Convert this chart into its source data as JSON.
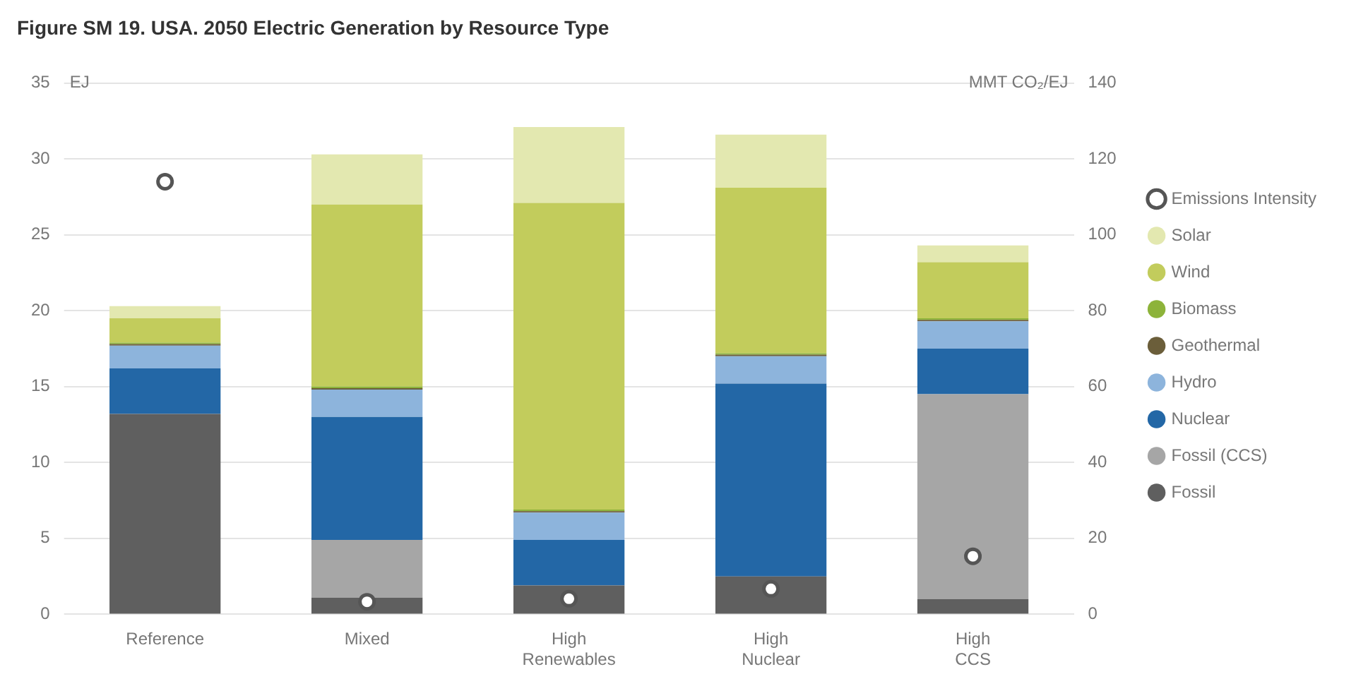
{
  "chart_data": {
    "type": "bar",
    "title": "Figure SM 19. USA. 2050 Electric Generation by Resource Type",
    "ylabel": "EJ",
    "y2label": "MMT CO₂/EJ",
    "categories": [
      "Reference",
      "Mixed",
      "High Renewables",
      "High Nuclear",
      "High CCS"
    ],
    "stacked": true,
    "series": [
      {
        "name": "Fossil",
        "color": "#5f5f5f",
        "values": [
          13.2,
          1.1,
          1.9,
          2.5,
          1.0
        ]
      },
      {
        "name": "Fossil (CCS)",
        "color": "#a6a6a6",
        "values": [
          0,
          3.8,
          0,
          0,
          13.5
        ]
      },
      {
        "name": "Nuclear",
        "color": "#2367a6",
        "values": [
          3.0,
          8.1,
          3.0,
          12.7,
          3.0
        ]
      },
      {
        "name": "Hydro",
        "color": "#8db4dc",
        "values": [
          1.5,
          1.8,
          1.8,
          1.8,
          1.8
        ]
      },
      {
        "name": "Geothermal",
        "color": "#6b5e3a",
        "values": [
          0.1,
          0.1,
          0.1,
          0.1,
          0.1
        ]
      },
      {
        "name": "Biomass",
        "color": "#8db33a",
        "values": [
          0.1,
          0.1,
          0.1,
          0.1,
          0.1
        ]
      },
      {
        "name": "Wind",
        "color": "#c2cc5c",
        "values": [
          1.6,
          12.0,
          20.2,
          10.9,
          3.7
        ]
      },
      {
        "name": "Solar",
        "color": "#e3e8b0",
        "values": [
          0.8,
          3.3,
          5.0,
          3.5,
          1.1
        ]
      },
      {
        "name": "Emissions Intensity",
        "type": "scatter",
        "axis": "y2",
        "color": "#555555",
        "marker": "circle",
        "x": [
          "Reference",
          "Mixed",
          "High Renewables",
          "High Nuclear",
          "High CCS"
        ],
        "values": [
          114,
          3.3,
          4.1,
          6.7,
          15.3
        ]
      }
    ],
    "ylim": [
      0,
      35
    ],
    "yticks": [
      0,
      5,
      10,
      15,
      20,
      25,
      30,
      35
    ],
    "y2lim": [
      0,
      140
    ],
    "y2ticks": [
      0,
      20,
      40,
      60,
      80,
      100,
      120,
      140
    ],
    "grid": "y",
    "legend": "right"
  }
}
